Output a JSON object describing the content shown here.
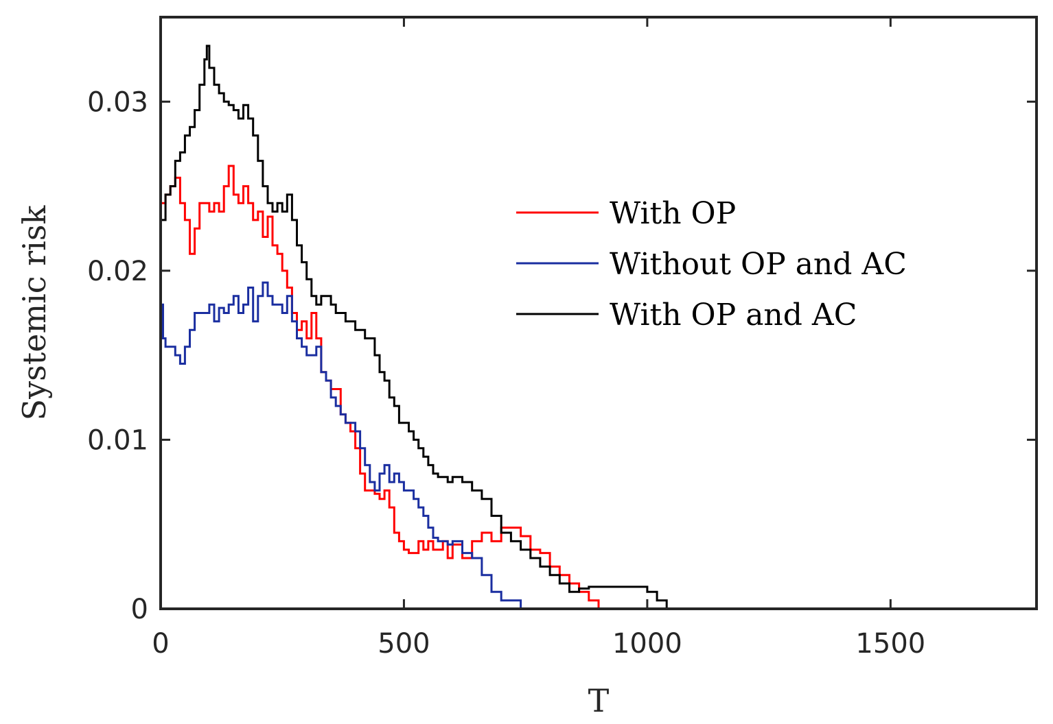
{
  "chart_data": {
    "type": "line",
    "title": "",
    "xlabel": "T",
    "ylabel": "Systemic risk",
    "xlim": [
      0,
      1800
    ],
    "ylim": [
      0,
      0.035
    ],
    "xticks": [
      0,
      500,
      1000,
      1500
    ],
    "xtick_labels": [
      "0",
      "500",
      "1000",
      "1500"
    ],
    "yticks": [
      0,
      0.01,
      0.02,
      0.03
    ],
    "ytick_labels": [
      "0",
      "0.01",
      "0.02",
      "0.03"
    ],
    "grid": false,
    "legend_position": "center-right",
    "series": [
      {
        "name": "With OP",
        "color": "#ff0000",
        "x": [
          0,
          10,
          20,
          30,
          40,
          50,
          60,
          70,
          80,
          90,
          100,
          110,
          120,
          130,
          140,
          150,
          160,
          170,
          180,
          190,
          200,
          210,
          220,
          230,
          240,
          250,
          260,
          270,
          280,
          290,
          300,
          310,
          320,
          330,
          340,
          350,
          360,
          370,
          380,
          390,
          400,
          410,
          420,
          430,
          440,
          450,
          460,
          470,
          480,
          490,
          500,
          510,
          520,
          530,
          540,
          550,
          560,
          570,
          580,
          590,
          600,
          620,
          640,
          660,
          680,
          700,
          720,
          740,
          760,
          780,
          800,
          820,
          840,
          860,
          880,
          900
        ],
        "y": [
          0.024,
          0.0245,
          0.025,
          0.0255,
          0.024,
          0.023,
          0.021,
          0.0225,
          0.024,
          0.024,
          0.0235,
          0.024,
          0.0235,
          0.025,
          0.0262,
          0.0245,
          0.024,
          0.025,
          0.024,
          0.023,
          0.0235,
          0.022,
          0.0232,
          0.0215,
          0.021,
          0.02,
          0.019,
          0.0175,
          0.0165,
          0.017,
          0.016,
          0.0175,
          0.016,
          0.014,
          0.0135,
          0.013,
          0.013,
          0.0115,
          0.011,
          0.0105,
          0.0095,
          0.008,
          0.007,
          0.007,
          0.0068,
          0.0065,
          0.007,
          0.006,
          0.0045,
          0.004,
          0.0035,
          0.0033,
          0.0033,
          0.004,
          0.0035,
          0.004,
          0.0035,
          0.0035,
          0.004,
          0.003,
          0.0038,
          0.003,
          0.004,
          0.0045,
          0.004,
          0.0048,
          0.0048,
          0.0043,
          0.0035,
          0.0033,
          0.0025,
          0.002,
          0.0015,
          0.001,
          0.0005,
          0.0
        ]
      },
      {
        "name": "Without OP and AC",
        "color": "#1a2ea0",
        "x": [
          0,
          5,
          10,
          20,
          30,
          40,
          50,
          60,
          70,
          80,
          90,
          100,
          110,
          120,
          130,
          140,
          150,
          160,
          170,
          180,
          190,
          200,
          210,
          220,
          230,
          240,
          250,
          260,
          270,
          280,
          290,
          300,
          310,
          320,
          330,
          340,
          350,
          360,
          370,
          380,
          390,
          400,
          410,
          420,
          430,
          440,
          450,
          460,
          470,
          480,
          490,
          500,
          510,
          520,
          530,
          540,
          550,
          560,
          570,
          580,
          590,
          600,
          620,
          640,
          660,
          680,
          700,
          720,
          740,
          760,
          800,
          900,
          1000,
          1040
        ],
        "y": [
          0.018,
          0.016,
          0.0155,
          0.0155,
          0.015,
          0.0145,
          0.0155,
          0.0165,
          0.0175,
          0.0175,
          0.0175,
          0.018,
          0.017,
          0.0178,
          0.0175,
          0.018,
          0.0185,
          0.0175,
          0.018,
          0.019,
          0.017,
          0.0185,
          0.0193,
          0.0185,
          0.018,
          0.018,
          0.0175,
          0.0185,
          0.017,
          0.016,
          0.0155,
          0.015,
          0.015,
          0.0155,
          0.014,
          0.0135,
          0.0125,
          0.012,
          0.0115,
          0.011,
          0.011,
          0.0105,
          0.0095,
          0.0085,
          0.0075,
          0.007,
          0.008,
          0.0085,
          0.0075,
          0.008,
          0.0075,
          0.007,
          0.007,
          0.0065,
          0.006,
          0.0055,
          0.0048,
          0.0042,
          0.004,
          0.004,
          0.0038,
          0.004,
          0.0033,
          0.003,
          0.002,
          0.001,
          0.0005,
          0.0005,
          0.0,
          0.0,
          0.0,
          0.0,
          0.0,
          0.0
        ]
      },
      {
        "name": "With OP and AC",
        "color": "#000000",
        "x": [
          0,
          10,
          20,
          30,
          40,
          50,
          60,
          70,
          80,
          90,
          95,
          100,
          110,
          120,
          130,
          140,
          150,
          160,
          170,
          180,
          190,
          200,
          210,
          220,
          230,
          240,
          250,
          260,
          270,
          280,
          290,
          300,
          310,
          320,
          330,
          340,
          350,
          360,
          370,
          380,
          390,
          400,
          410,
          420,
          430,
          440,
          450,
          460,
          470,
          480,
          490,
          500,
          510,
          520,
          530,
          540,
          550,
          560,
          570,
          580,
          590,
          600,
          620,
          640,
          660,
          680,
          700,
          720,
          740,
          760,
          780,
          800,
          820,
          840,
          860,
          880,
          900,
          950,
          1000,
          1020,
          1040
        ],
        "y": [
          0.023,
          0.0245,
          0.025,
          0.0265,
          0.027,
          0.028,
          0.0285,
          0.0295,
          0.031,
          0.0325,
          0.0333,
          0.032,
          0.031,
          0.0305,
          0.03,
          0.0298,
          0.0295,
          0.029,
          0.0298,
          0.029,
          0.028,
          0.0265,
          0.025,
          0.024,
          0.0235,
          0.024,
          0.0235,
          0.0245,
          0.023,
          0.0215,
          0.0205,
          0.0195,
          0.0185,
          0.018,
          0.0185,
          0.0185,
          0.018,
          0.0175,
          0.0175,
          0.017,
          0.017,
          0.0165,
          0.0165,
          0.016,
          0.016,
          0.015,
          0.014,
          0.0135,
          0.0125,
          0.012,
          0.011,
          0.011,
          0.0105,
          0.01,
          0.0095,
          0.009,
          0.0085,
          0.008,
          0.0078,
          0.0078,
          0.0075,
          0.0078,
          0.0075,
          0.007,
          0.0065,
          0.0055,
          0.0045,
          0.004,
          0.0035,
          0.003,
          0.0025,
          0.002,
          0.0015,
          0.001,
          0.0012,
          0.0013,
          0.0013,
          0.0013,
          0.001,
          0.0005,
          0.0
        ]
      }
    ]
  }
}
